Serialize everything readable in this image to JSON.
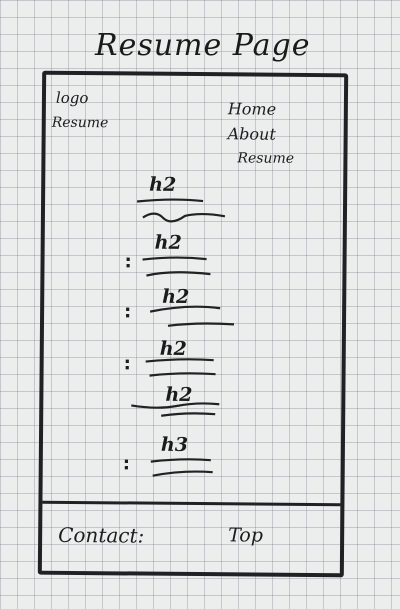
{
  "page_title": "Resume Page",
  "header": {
    "logo": "logo",
    "site_name": "Resume",
    "nav": [
      "Home",
      "About",
      "Resume"
    ]
  },
  "sections": [
    {
      "heading": "h2"
    },
    {
      "heading": "h2"
    },
    {
      "heading": "h2"
    },
    {
      "heading": "h2"
    },
    {
      "heading": "h2"
    },
    {
      "heading": "h3"
    }
  ],
  "footer": {
    "contact": "Contact:",
    "top": "Top"
  }
}
